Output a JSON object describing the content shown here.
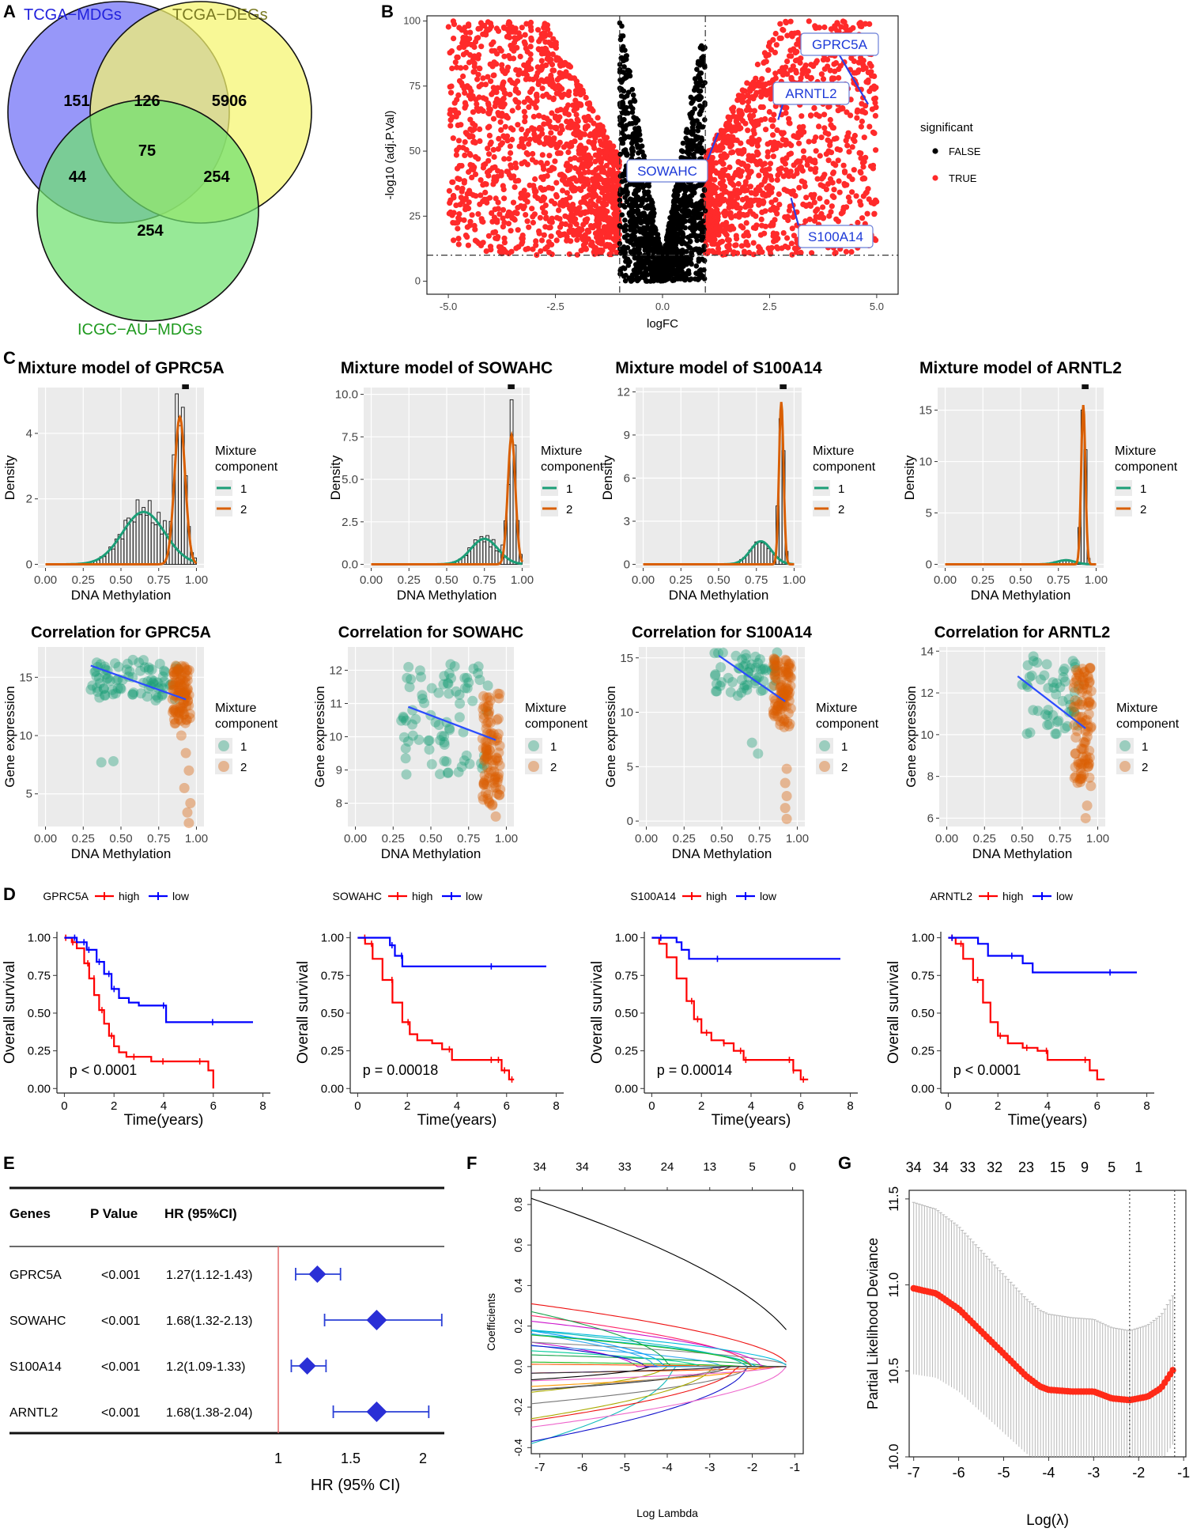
{
  "panel_letters": {
    "A": "A",
    "B": "B",
    "C": "C",
    "D": "D",
    "E": "E",
    "F": "F",
    "G": "G"
  },
  "chart_data": [
    {
      "panel": "A",
      "type": "venn",
      "sets": [
        "TCGA−MDGs",
        "TCGA−DEGs",
        "ICGC−AU−MDGs"
      ],
      "set_colors": [
        "#6f6ff7",
        "#f5f56e",
        "#6fe06f"
      ],
      "label_colors": [
        "#2222dd",
        "#7a7a22",
        "#1f9a1f"
      ],
      "regions": {
        "mdg_only": 151,
        "mdg_deg": 126,
        "deg_only": 5906,
        "all_three": 75,
        "mdg_icgc": 44,
        "deg_icgc": 254,
        "icgc_only": 254
      }
    },
    {
      "panel": "B",
      "type": "scatter",
      "title": "",
      "xlabel": "logFC",
      "ylabel": "-log10 (adj.P.Val)",
      "xlim": [
        -5.5,
        5.5
      ],
      "ylim": [
        -5,
        102
      ],
      "xticks": [
        -5.0,
        -2.5,
        0.0,
        2.5,
        5.0
      ],
      "xtick_labels": [
        "-5.0",
        "-2.5",
        "0.0",
        "2.5",
        "5.0"
      ],
      "yticks": [
        0,
        25,
        50,
        75,
        100
      ],
      "thresholds": {
        "logFC": [
          -1,
          1
        ],
        "neglog10p": 10
      },
      "legend_title": "significant",
      "legend": [
        {
          "label": "FALSE",
          "color": "#000000"
        },
        {
          "label": "TRUE",
          "color": "#ff2a2a"
        }
      ],
      "annotations": [
        {
          "label": "GPRC5A",
          "x": 4.8,
          "y": 68
        },
        {
          "label": "ARNTL2",
          "x": 2.7,
          "y": 62
        },
        {
          "label": "SOWAHC",
          "x": 1.3,
          "y": 57
        },
        {
          "label": "S100A14",
          "x": 3.0,
          "y": 32
        }
      ]
    },
    {
      "panel": "C",
      "type": "histogram_mixture",
      "plots": [
        {
          "title": "Mixture model of GPRC5A",
          "ylabel": "Density",
          "xlabel": "DNA Methylation",
          "ymax": 5.4,
          "yticks": [
            0,
            2,
            4
          ],
          "comp1": {
            "mu": 0.65,
            "sd": 0.14,
            "peak": 1.6
          },
          "comp2": {
            "mu": 0.89,
            "sd": 0.035,
            "peak": 4.5
          }
        },
        {
          "title": "Mixture model of SOWAHC",
          "ylabel": "Density",
          "xlabel": "DNA Methylation",
          "ymax": 10.4,
          "yticks": [
            0,
            2.5,
            5,
            7.5,
            10
          ],
          "ytick_labels": [
            "0.0",
            "2.5",
            "5.0",
            "7.5",
            "10.0"
          ],
          "comp1": {
            "mu": 0.75,
            "sd": 0.09,
            "peak": 1.5
          },
          "comp2": {
            "mu": 0.93,
            "sd": 0.025,
            "peak": 7.6
          }
        },
        {
          "title": "Mixture model of S100A14",
          "ylabel": "Density",
          "xlabel": "DNA Methylation",
          "ymax": 12.3,
          "yticks": [
            0,
            3,
            6,
            9,
            12
          ],
          "comp1": {
            "mu": 0.78,
            "sd": 0.07,
            "peak": 1.6
          },
          "comp2": {
            "mu": 0.915,
            "sd": 0.015,
            "peak": 11.3
          }
        },
        {
          "title": "Mixture model of ARNTL2",
          "ylabel": "Density",
          "xlabel": "DNA Methylation",
          "ymax": 17.2,
          "yticks": [
            0,
            5,
            10,
            15
          ],
          "comp1": {
            "mu": 0.8,
            "sd": 0.06,
            "peak": 0.4
          },
          "comp2": {
            "mu": 0.915,
            "sd": 0.014,
            "peak": 15.5
          }
        }
      ],
      "xticks": [
        0,
        0.25,
        0.5,
        0.75,
        1.0
      ],
      "xtick_labels": [
        "0.00",
        "0.25",
        "0.50",
        "0.75",
        "1.00"
      ],
      "legend_title": [
        "Mixture",
        "component"
      ],
      "legend": [
        {
          "label": "1",
          "color": "#1b9e77"
        },
        {
          "label": "2",
          "color": "#d95f02"
        }
      ]
    },
    {
      "panel": "C2",
      "type": "scatter_correlation",
      "plots": [
        {
          "title": "Correlation for GPRC5A",
          "ylabel": "Gene expression",
          "xlabel": "DNA Methylation",
          "ylim": [
            2.2,
            17.6
          ],
          "yticks": [
            5,
            10,
            15
          ],
          "line": [
            [
              0.3,
              16.0
            ],
            [
              0.93,
              13.1
            ]
          ]
        },
        {
          "title": "Correlation for SOWAHC",
          "ylabel": "Gene expression",
          "xlabel": "DNA Methylation",
          "ylim": [
            7.3,
            12.7
          ],
          "yticks": [
            8,
            9,
            10,
            11,
            12
          ],
          "line": [
            [
              0.35,
              10.9
            ],
            [
              0.93,
              9.9
            ]
          ]
        },
        {
          "title": "Correlation for S100A14",
          "ylabel": "Gene expression",
          "xlabel": "DNA Methylation",
          "ylim": [
            -0.5,
            16.0
          ],
          "yticks": [
            0,
            5,
            10,
            15
          ],
          "line": [
            [
              0.48,
              15.2
            ],
            [
              0.92,
              11.0
            ]
          ]
        },
        {
          "title": "Correlation for ARNTL2",
          "ylabel": "Gene expression",
          "xlabel": "DNA Methylation",
          "ylim": [
            5.6,
            14.2
          ],
          "yticks": [
            6,
            8,
            10,
            12,
            14
          ],
          "line": [
            [
              0.47,
              12.8
            ],
            [
              0.92,
              10.3
            ]
          ]
        }
      ],
      "xticks": [
        0,
        0.25,
        0.5,
        0.75,
        1.0
      ],
      "xtick_labels": [
        "0.00",
        "0.25",
        "0.50",
        "0.75",
        "1.00"
      ],
      "legend_title": [
        "Mixture",
        "component"
      ],
      "legend": [
        {
          "label": "1",
          "color": "#1b9e77"
        },
        {
          "label": "2",
          "color": "#d95f02"
        }
      ]
    },
    {
      "panel": "D",
      "type": "kaplan_meier",
      "xlabel": "Time(years)",
      "ylabel": "Overall survival",
      "xlim": [
        0,
        8
      ],
      "xticks": [
        0,
        2,
        4,
        6,
        8
      ],
      "yticks": [
        0,
        0.25,
        0.5,
        0.75,
        1.0
      ],
      "ytick_labels": [
        "0.00",
        "0.25",
        "0.50",
        "0.75",
        "1.00"
      ],
      "strata_colors": {
        "high": "#ff0000",
        "low": "#0000ff"
      },
      "plots": [
        {
          "gene": "GPRC5A",
          "pvalue": "p < 0.0001",
          "high": [
            [
              0,
              1
            ],
            [
              0.3,
              0.97
            ],
            [
              0.5,
              0.93
            ],
            [
              0.8,
              0.83
            ],
            [
              1.0,
              0.73
            ],
            [
              1.2,
              0.62
            ],
            [
              1.4,
              0.52
            ],
            [
              1.6,
              0.43
            ],
            [
              1.8,
              0.35
            ],
            [
              2.0,
              0.28
            ],
            [
              2.2,
              0.24
            ],
            [
              2.5,
              0.21
            ],
            [
              3.0,
              0.21
            ],
            [
              3.5,
              0.18
            ],
            [
              5.4,
              0.18
            ],
            [
              5.8,
              0.12
            ],
            [
              6.0,
              0.0
            ]
          ],
          "low": [
            [
              0,
              1
            ],
            [
              0.5,
              0.97
            ],
            [
              0.9,
              0.92
            ],
            [
              1.3,
              0.84
            ],
            [
              1.6,
              0.76
            ],
            [
              1.9,
              0.66
            ],
            [
              2.2,
              0.6
            ],
            [
              2.6,
              0.57
            ],
            [
              3.0,
              0.55
            ],
            [
              3.6,
              0.55
            ],
            [
              4.1,
              0.44
            ],
            [
              7.6,
              0.44
            ]
          ]
        },
        {
          "gene": "SOWAHC",
          "pvalue": "p = 0.00018",
          "high": [
            [
              0,
              1
            ],
            [
              0.3,
              0.96
            ],
            [
              0.6,
              0.86
            ],
            [
              1.0,
              0.72
            ],
            [
              1.4,
              0.57
            ],
            [
              1.8,
              0.44
            ],
            [
              2.1,
              0.36
            ],
            [
              2.4,
              0.32
            ],
            [
              3.0,
              0.3
            ],
            [
              3.4,
              0.26
            ],
            [
              3.8,
              0.19
            ],
            [
              5.5,
              0.19
            ],
            [
              5.8,
              0.12
            ],
            [
              6.1,
              0.06
            ],
            [
              6.3,
              0.06
            ]
          ],
          "low": [
            [
              0,
              1
            ],
            [
              1.3,
              0.95
            ],
            [
              1.5,
              0.88
            ],
            [
              1.8,
              0.81
            ],
            [
              7.6,
              0.81
            ]
          ]
        },
        {
          "gene": "S100A14",
          "pvalue": "p = 0.00014",
          "high": [
            [
              0,
              1
            ],
            [
              0.3,
              0.96
            ],
            [
              0.6,
              0.87
            ],
            [
              1.0,
              0.73
            ],
            [
              1.4,
              0.58
            ],
            [
              1.7,
              0.46
            ],
            [
              2.0,
              0.37
            ],
            [
              2.4,
              0.32
            ],
            [
              2.9,
              0.3
            ],
            [
              3.3,
              0.25
            ],
            [
              3.7,
              0.19
            ],
            [
              5.4,
              0.19
            ],
            [
              5.7,
              0.12
            ],
            [
              6.0,
              0.06
            ],
            [
              6.3,
              0.06
            ]
          ],
          "low": [
            [
              0,
              1
            ],
            [
              1.0,
              0.97
            ],
            [
              1.2,
              0.92
            ],
            [
              1.5,
              0.86
            ],
            [
              7.6,
              0.86
            ]
          ]
        },
        {
          "gene": "ARNTL2",
          "pvalue": "p < 0.0001",
          "high": [
            [
              0,
              1
            ],
            [
              0.3,
              0.96
            ],
            [
              0.6,
              0.86
            ],
            [
              1.0,
              0.72
            ],
            [
              1.4,
              0.57
            ],
            [
              1.7,
              0.44
            ],
            [
              2.0,
              0.35
            ],
            [
              2.4,
              0.3
            ],
            [
              3.0,
              0.27
            ],
            [
              3.6,
              0.25
            ],
            [
              4.0,
              0.19
            ],
            [
              5.4,
              0.19
            ],
            [
              5.7,
              0.12
            ],
            [
              6.0,
              0.06
            ],
            [
              6.3,
              0.06
            ]
          ],
          "low": [
            [
              0,
              1
            ],
            [
              1.2,
              0.96
            ],
            [
              1.6,
              0.88
            ],
            [
              2.8,
              0.88
            ],
            [
              3.0,
              0.83
            ],
            [
              3.4,
              0.77
            ],
            [
              7.6,
              0.77
            ]
          ]
        }
      ]
    },
    {
      "panel": "E",
      "type": "forest",
      "headers": [
        "Genes",
        "P Value",
        "HR (95%CI)"
      ],
      "rows": [
        {
          "gene": "GPRC5A",
          "p": "<0.001",
          "hr_text": "1.27(1.12-1.43)",
          "hr": 1.27,
          "lo": 1.12,
          "hi": 1.43
        },
        {
          "gene": "SOWAHC",
          "p": "<0.001",
          "hr_text": "1.68(1.32-2.13)",
          "hr": 1.68,
          "lo": 1.32,
          "hi": 2.13
        },
        {
          "gene": "S100A14",
          "p": "<0.001",
          "hr_text": "1.2(1.09-1.33)",
          "hr": 1.2,
          "lo": 1.09,
          "hi": 1.33
        },
        {
          "gene": "ARNTL2",
          "p": "<0.001",
          "hr_text": "1.68(1.38-2.04)",
          "hr": 1.68,
          "lo": 1.38,
          "hi": 2.04
        }
      ],
      "xticks": [
        1,
        1.5,
        2
      ],
      "xtick_labels": [
        "1",
        "1.5",
        "2"
      ],
      "xlabel": "HR (95% CI)",
      "reference_line": 1
    },
    {
      "panel": "F",
      "type": "line",
      "xlabel": "Log Lambda",
      "ylabel": "Coefficients",
      "xlim": [
        -7.2,
        -0.8
      ],
      "ylim": [
        -0.43,
        0.87
      ],
      "xticks": [
        -7,
        -6,
        -5,
        -4,
        -3,
        -2,
        -1
      ],
      "yticks": [
        -0.4,
        -0.2,
        0.0,
        0.2,
        0.4,
        0.6,
        0.8
      ],
      "ytick_labels": [
        "-0.4",
        "-0.2",
        "0.0",
        "0.2",
        "0.4",
        "0.6",
        "0.8"
      ],
      "top_labels": [
        "34",
        "34",
        "33",
        "24",
        "13",
        "5",
        "0"
      ],
      "top_label_x": [
        -7,
        -6,
        -5,
        -4,
        -3,
        -2,
        -1.05
      ],
      "n_paths": 34
    },
    {
      "panel": "G",
      "type": "errorbar_scatter",
      "xlabel": "Log(λ)",
      "ylabel": "Partial Likelihood Deviance",
      "xlim": [
        -7.1,
        -0.95
      ],
      "ylim": [
        10.0,
        11.55
      ],
      "xticks": [
        -7,
        -6,
        -5,
        -4,
        -3,
        -2,
        -1
      ],
      "yticks": [
        10.0,
        10.5,
        11.0,
        11.5
      ],
      "ytick_labels": [
        "10.0",
        "10.5",
        "11.0",
        "11.5"
      ],
      "top_labels": [
        "34",
        "34",
        "33",
        "32",
        "23",
        "15",
        "9",
        "5",
        "1"
      ],
      "top_label_x": [
        -7,
        -6.4,
        -5.8,
        -5.2,
        -4.5,
        -3.8,
        -3.2,
        -2.6,
        -2.0
      ],
      "vlines": [
        -2.2,
        -1.2
      ],
      "curve": [
        [
          -7,
          10.98
        ],
        [
          -6.5,
          10.95
        ],
        [
          -6,
          10.86
        ],
        [
          -5.5,
          10.73
        ],
        [
          -5,
          10.6
        ],
        [
          -4.5,
          10.47
        ],
        [
          -4.2,
          10.41
        ],
        [
          -4,
          10.39
        ],
        [
          -3.5,
          10.38
        ],
        [
          -3,
          10.38
        ],
        [
          -2.6,
          10.34
        ],
        [
          -2.2,
          10.33
        ],
        [
          -1.8,
          10.35
        ],
        [
          -1.5,
          10.4
        ],
        [
          -1.2,
          10.52
        ]
      ]
    }
  ]
}
